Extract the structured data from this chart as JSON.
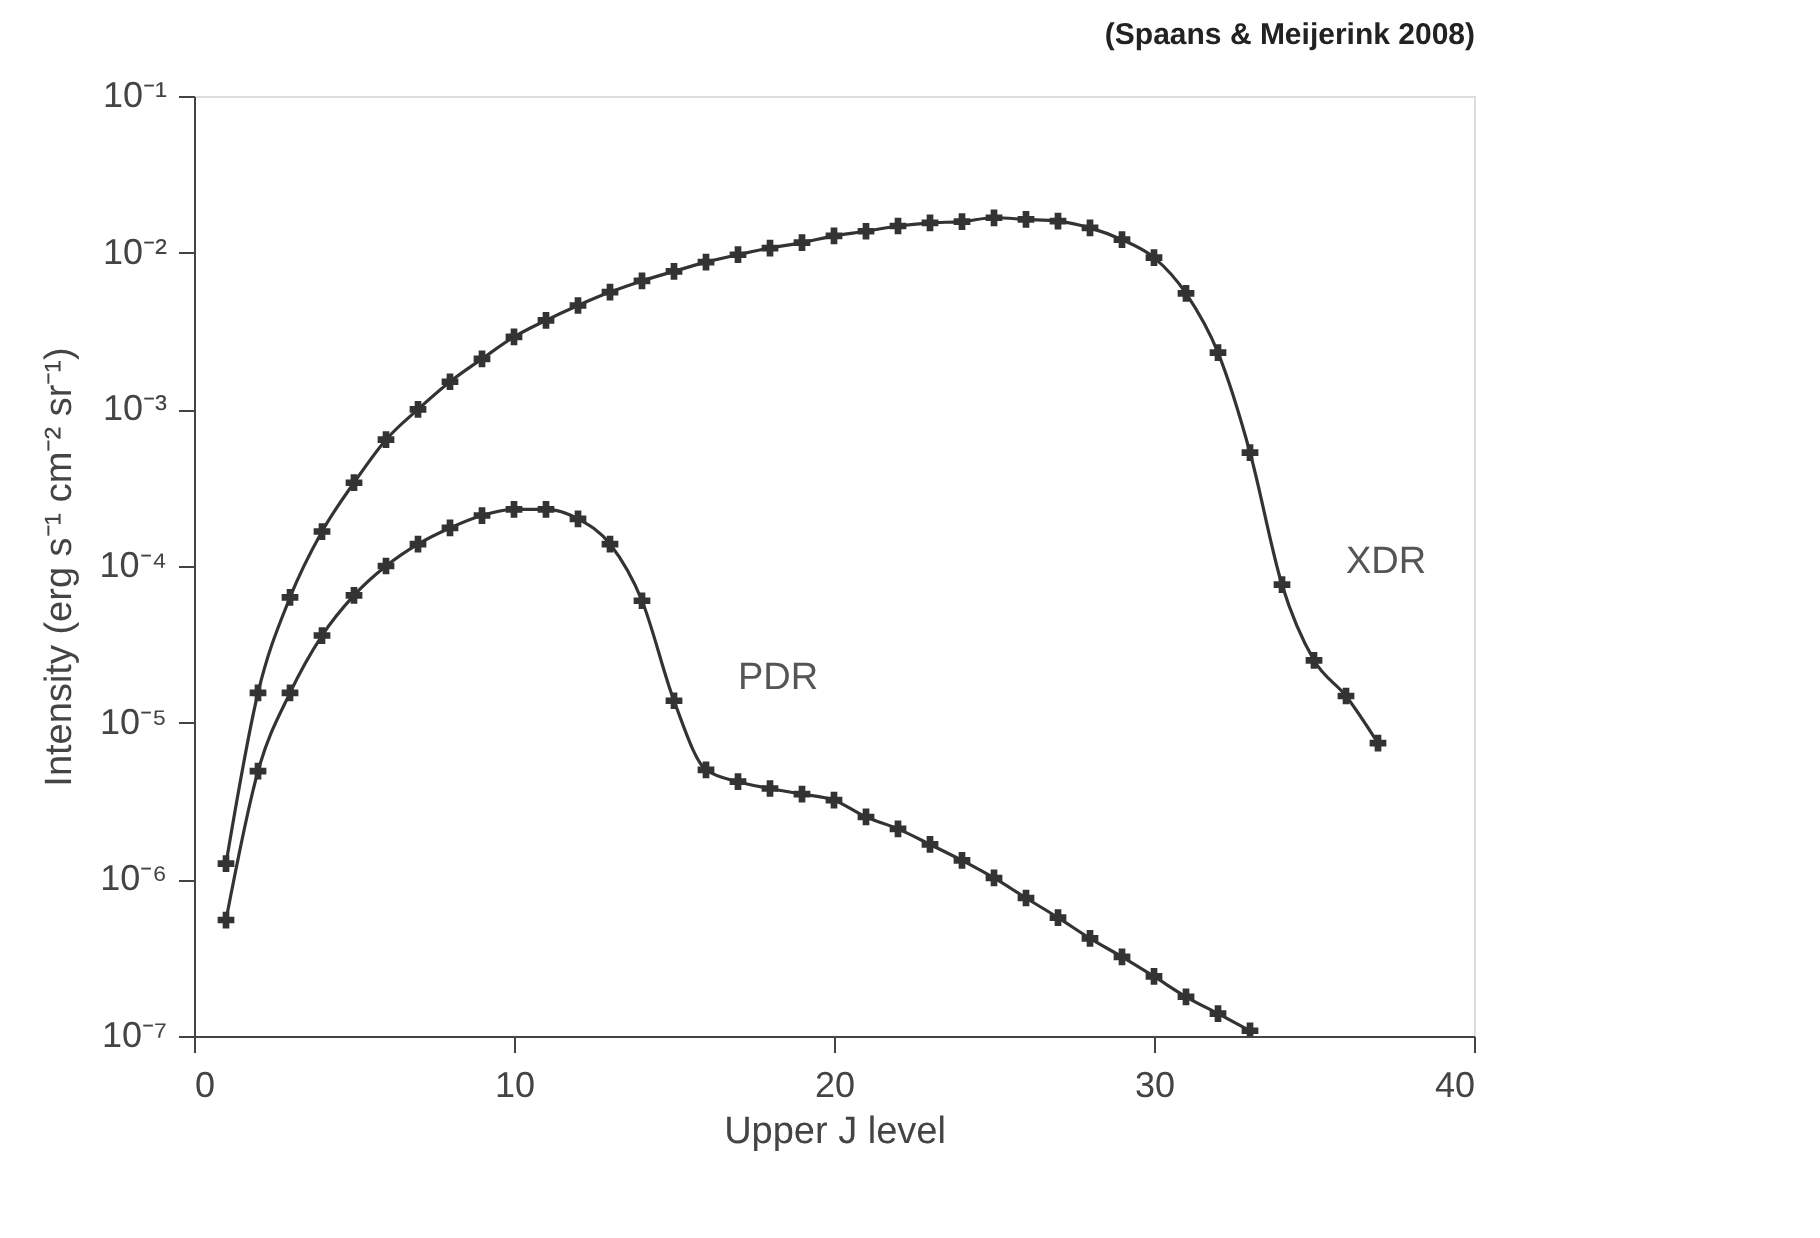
{
  "chart_data": {
    "type": "line",
    "xlabel": "Upper J level",
    "ylabel": "Intensity (erg s⁻¹ cm⁻² sr⁻¹)",
    "annotations": [
      "(Spaans & Meijerink 2008)"
    ],
    "log": "y",
    "marker": "cross",
    "line_style": "solid",
    "grid": false,
    "xlim": [
      0,
      40
    ],
    "xticks": [
      0,
      10,
      20,
      30,
      40
    ],
    "ylim": [
      1e-07,
      0.1
    ],
    "yticks": [
      {
        "value": 1e-07,
        "label": "10⁻⁷"
      },
      {
        "value": 1e-06,
        "label": "10⁻⁶"
      },
      {
        "value": 1e-05,
        "label": "10⁻⁵"
      },
      {
        "value": 0.0001,
        "label": "10⁻⁴"
      },
      {
        "value": 0.001,
        "label": "10⁻³"
      },
      {
        "value": 0.01,
        "label": "10⁻²"
      },
      {
        "value": 0.1,
        "label": "10⁻¹"
      }
    ],
    "series": [
      {
        "name": "XDR",
        "color": "#333333",
        "x": [
          1,
          2,
          3,
          4,
          5,
          6,
          7,
          8,
          9,
          10,
          11,
          12,
          13,
          14,
          15,
          16,
          17,
          18,
          19,
          20,
          21,
          22,
          23,
          24,
          25,
          26,
          27,
          28,
          29,
          30,
          31,
          32,
          33,
          34,
          35,
          36,
          37
        ],
        "values": [
          1.26e-06,
          1.55e-05,
          6.3e-05,
          0.000166,
          0.00034,
          0.00064,
          0.001,
          0.0015,
          0.0021,
          0.0029,
          0.0037,
          0.0046,
          0.0056,
          0.0066,
          0.0076,
          0.0087,
          0.0097,
          0.0107,
          0.0116,
          0.0128,
          0.0137,
          0.0148,
          0.0155,
          0.0158,
          0.0167,
          0.0163,
          0.0159,
          0.0144,
          0.0121,
          0.0093,
          0.0055,
          0.0023,
          0.00053,
          7.6e-05,
          2.5e-05,
          1.48e-05,
          7.4e-06
        ]
      },
      {
        "name": "PDR",
        "color": "#333333",
        "x": [
          1,
          2,
          3,
          4,
          5,
          6,
          7,
          8,
          9,
          10,
          11,
          12,
          13,
          14,
          15,
          16,
          17,
          18,
          19,
          20,
          21,
          22,
          23,
          24,
          25,
          26,
          27,
          28,
          29,
          30,
          31,
          32,
          33
        ],
        "values": [
          5.5e-07,
          4.9e-06,
          1.55e-05,
          3.6e-05,
          6.5e-05,
          0.0001,
          0.000138,
          0.000175,
          0.00021,
          0.00023,
          0.00023,
          0.0002,
          0.000138,
          6e-05,
          1.38e-05,
          5e-06,
          4.2e-06,
          3.8e-06,
          3.5e-06,
          3.2e-06,
          2.5e-06,
          2.1e-06,
          1.67e-06,
          1.32e-06,
          1.02e-06,
          7.6e-07,
          5.7e-07,
          4.2e-07,
          3.2e-07,
          2.4e-07,
          1.78e-07,
          1.39e-07,
          1.08e-07
        ]
      }
    ]
  }
}
